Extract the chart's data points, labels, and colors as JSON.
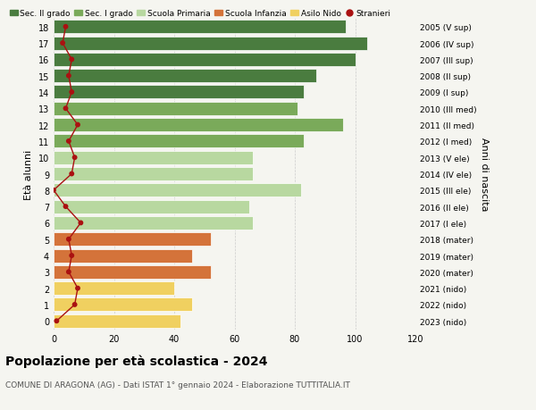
{
  "ages": [
    18,
    17,
    16,
    15,
    14,
    13,
    12,
    11,
    10,
    9,
    8,
    7,
    6,
    5,
    4,
    3,
    2,
    1,
    0
  ],
  "bar_values": [
    97,
    104,
    100,
    87,
    83,
    81,
    96,
    83,
    66,
    66,
    82,
    65,
    66,
    52,
    46,
    52,
    40,
    46,
    42
  ],
  "stranieri": [
    4,
    3,
    6,
    5,
    6,
    4,
    8,
    5,
    7,
    6,
    0,
    4,
    9,
    5,
    6,
    5,
    8,
    7,
    1
  ],
  "right_labels": [
    "2005 (V sup)",
    "2006 (IV sup)",
    "2007 (III sup)",
    "2008 (II sup)",
    "2009 (I sup)",
    "2010 (III med)",
    "2011 (II med)",
    "2012 (I med)",
    "2013 (V ele)",
    "2014 (IV ele)",
    "2015 (III ele)",
    "2016 (II ele)",
    "2017 (I ele)",
    "2018 (mater)",
    "2019 (mater)",
    "2020 (mater)",
    "2021 (nido)",
    "2022 (nido)",
    "2023 (nido)"
  ],
  "bar_colors": [
    "#4a7c3f",
    "#4a7c3f",
    "#4a7c3f",
    "#4a7c3f",
    "#4a7c3f",
    "#7aaa5a",
    "#7aaa5a",
    "#7aaa5a",
    "#b8d8a0",
    "#b8d8a0",
    "#b8d8a0",
    "#b8d8a0",
    "#b8d8a0",
    "#d4733a",
    "#d4733a",
    "#d4733a",
    "#f0d060",
    "#f0d060",
    "#f0d060"
  ],
  "legend_labels": [
    "Sec. II grado",
    "Sec. I grado",
    "Scuola Primaria",
    "Scuola Infanzia",
    "Asilo Nido",
    "Stranieri"
  ],
  "legend_colors": [
    "#4a7c3f",
    "#7aaa5a",
    "#b8d8a0",
    "#d4733a",
    "#f0d060",
    "#aa1111"
  ],
  "stranieri_color": "#aa1111",
  "ylabel": "Età alunni",
  "right_ylabel": "Anni di nascita",
  "title": "Popolazione per età scolastica - 2024",
  "subtitle": "COMUNE DI ARAGONA (AG) - Dati ISTAT 1° gennaio 2024 - Elaborazione TUTTITALIA.IT",
  "xlim": [
    0,
    120
  ],
  "xticks": [
    0,
    20,
    40,
    60,
    80,
    100,
    120
  ],
  "background_color": "#f5f5f0",
  "grid_color": "#cccccc"
}
